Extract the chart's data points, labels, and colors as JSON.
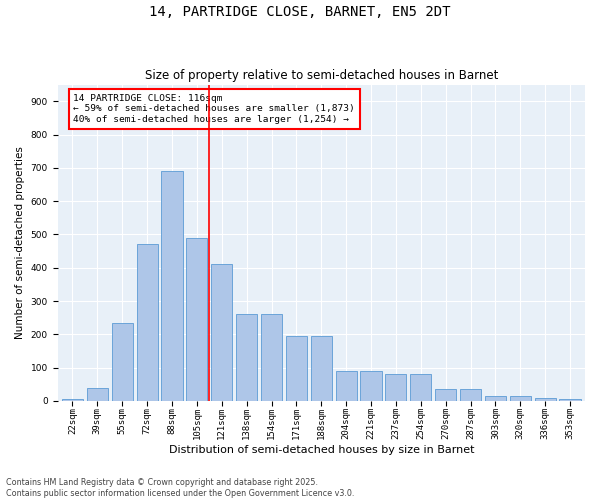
{
  "title": "14, PARTRIDGE CLOSE, BARNET, EN5 2DT",
  "subtitle": "Size of property relative to semi-detached houses in Barnet",
  "xlabel": "Distribution of semi-detached houses by size in Barnet",
  "ylabel": "Number of semi-detached properties",
  "categories": [
    "22sqm",
    "39sqm",
    "55sqm",
    "72sqm",
    "88sqm",
    "105sqm",
    "121sqm",
    "138sqm",
    "154sqm",
    "171sqm",
    "188sqm",
    "204sqm",
    "221sqm",
    "237sqm",
    "254sqm",
    "270sqm",
    "287sqm",
    "303sqm",
    "320sqm",
    "336sqm",
    "353sqm"
  ],
  "values": [
    5,
    40,
    235,
    470,
    690,
    490,
    410,
    260,
    260,
    195,
    195,
    90,
    90,
    80,
    80,
    35,
    35,
    15,
    15,
    10,
    5
  ],
  "bar_color": "#aec6e8",
  "bar_edge_color": "#5b9bd5",
  "vline_color": "red",
  "annotation_title": "14 PARTRIDGE CLOSE: 116sqm",
  "annotation_line1": "← 59% of semi-detached houses are smaller (1,873)",
  "annotation_line2": "40% of semi-detached houses are larger (1,254) →",
  "ylim": [
    0,
    950
  ],
  "yticks": [
    0,
    100,
    200,
    300,
    400,
    500,
    600,
    700,
    800,
    900
  ],
  "background_color": "#e8f0f8",
  "footer1": "Contains HM Land Registry data © Crown copyright and database right 2025.",
  "footer2": "Contains public sector information licensed under the Open Government Licence v3.0.",
  "title_fontsize": 10,
  "subtitle_fontsize": 8.5,
  "tick_fontsize": 6.5,
  "xlabel_fontsize": 8,
  "ylabel_fontsize": 7.5,
  "annotation_fontsize": 6.8,
  "footer_fontsize": 5.8
}
